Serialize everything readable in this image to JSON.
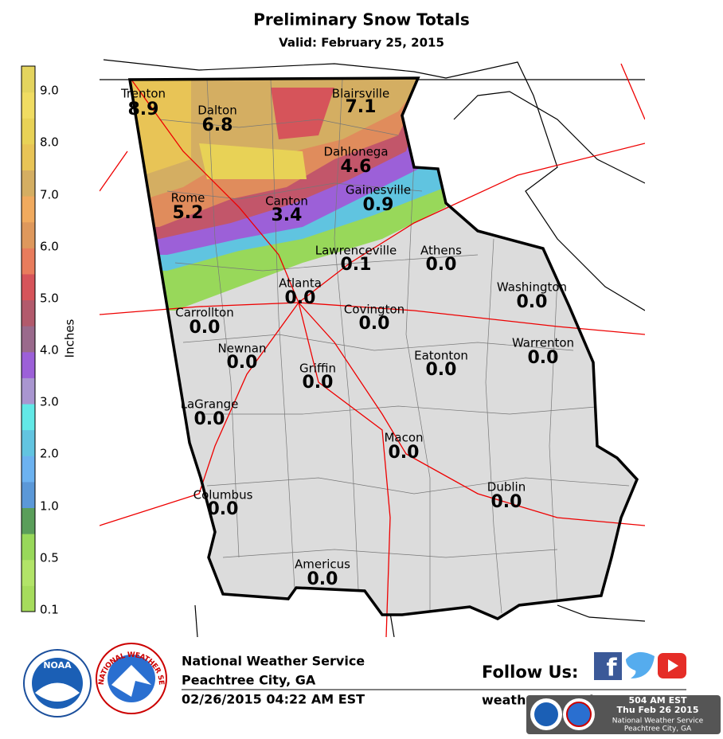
{
  "header": {
    "title": "Preliminary Snow Totals",
    "subtitle": "Valid: February 25, 2015"
  },
  "colorbar": {
    "label": "Inches",
    "ticks": [
      "0.1",
      "0.5",
      "1.0",
      "2.0",
      "3.0",
      "4.0",
      "5.0",
      "6.0",
      "7.0",
      "8.0",
      "9.0"
    ],
    "colors": [
      "#a6dc5c",
      "#b2e468",
      "#98d85a",
      "#5a9e5a",
      "#5b98d8",
      "#6cb2f0",
      "#62c4e0",
      "#62e8e6",
      "#a996d0",
      "#9c60d8",
      "#9a6a8c",
      "#b25a6c",
      "#d6545a",
      "#e87c5c",
      "#de985c",
      "#f0aa5e",
      "#d4ae62",
      "#e8c456",
      "#e8d256",
      "#f0dc62",
      "#e4d45e"
    ]
  },
  "cities": [
    {
      "name": "Trenton",
      "value": "8.9"
    },
    {
      "name": "Dalton",
      "value": "6.8"
    },
    {
      "name": "Blairsville",
      "value": "7.1"
    },
    {
      "name": "Dahlonega",
      "value": "4.6"
    },
    {
      "name": "Rome",
      "value": "5.2"
    },
    {
      "name": "Canton",
      "value": "3.4"
    },
    {
      "name": "Gainesville",
      "value": "0.9"
    },
    {
      "name": "Lawrenceville",
      "value": "0.1"
    },
    {
      "name": "Athens",
      "value": "0.0"
    },
    {
      "name": "Atlanta",
      "value": "0.0"
    },
    {
      "name": "Washington",
      "value": "0.0"
    },
    {
      "name": "Carrollton",
      "value": "0.0"
    },
    {
      "name": "Covington",
      "value": "0.0"
    },
    {
      "name": "Newnan",
      "value": "0.0"
    },
    {
      "name": "Warrenton",
      "value": "0.0"
    },
    {
      "name": "Eatonton",
      "value": "0.0"
    },
    {
      "name": "Griffin",
      "value": "0.0"
    },
    {
      "name": "LaGrange",
      "value": "0.0"
    },
    {
      "name": "Macon",
      "value": "0.0"
    },
    {
      "name": "Dublin",
      "value": "0.0"
    },
    {
      "name": "Columbus",
      "value": "0.0"
    },
    {
      "name": "Americus",
      "value": "0.0"
    }
  ],
  "footer": {
    "agency": "National Weather Service",
    "office": "Peachtree City, GA",
    "timestamp": "02/26/2015 04:22 AM EST",
    "follow": "Follow Us:",
    "website": "weather.gov/atlanta",
    "noaa": "NOAA",
    "nws_ring": "NATIONAL WEATHER SERVICE"
  },
  "badge": {
    "time": "504 AM EST",
    "date": "Thu Feb 26 2015",
    "agency": "National Weather Service",
    "office": "Peachtree City, GA"
  }
}
